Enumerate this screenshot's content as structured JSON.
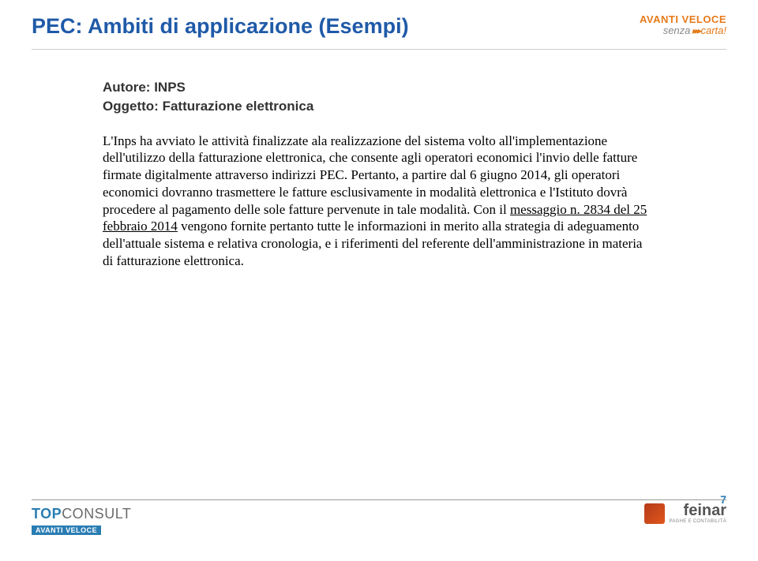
{
  "title": "PEC: Ambiti di applicazione (Esempi)",
  "logo_top": {
    "line1": "AVANTI VELOCE",
    "line2_prefix": "senza",
    "line2_suffix": "carta!"
  },
  "meta": {
    "author_label": "Autore:",
    "author_value": "INPS",
    "subject_label": "Oggetto:",
    "subject_value": "Fatturazione elettronica"
  },
  "body": {
    "p1a": "L'Inps ha avviato le attività finalizzate ala realizzazione del sistema volto all'implementazione dell'utilizzo della fatturazione elettronica, che consente agli operatori economici l'invio delle fatture firmate digitalmente attraverso indirizzi PEC. Pertanto, a partire dal 6 giugno 2014, gli operatori economici dovranno trasmettere le fatture esclusivamente in modalità elettronica e l'Istituto dovrà procedere al pagamento delle sole fatture pervenute in tale modalità. Con il ",
    "link": "messaggio n. 2834 del 25 febbraio 2014",
    "p1b": " vengono fornite pertanto tutte le informazioni in merito alla strategia di adeguamento dell'attuale sistema e relativa cronologia, e i riferimenti del referente dell'amministrazione in materia di fatturazione elettronica."
  },
  "footer": {
    "topconsult_top": "TOP",
    "topconsult_consult": "CONSULT",
    "av_badge": "AVANTI VELOCE",
    "feinar": "feinar",
    "feinar_sub": "PAGHE E CONTABILITÀ"
  },
  "page_number": "7"
}
